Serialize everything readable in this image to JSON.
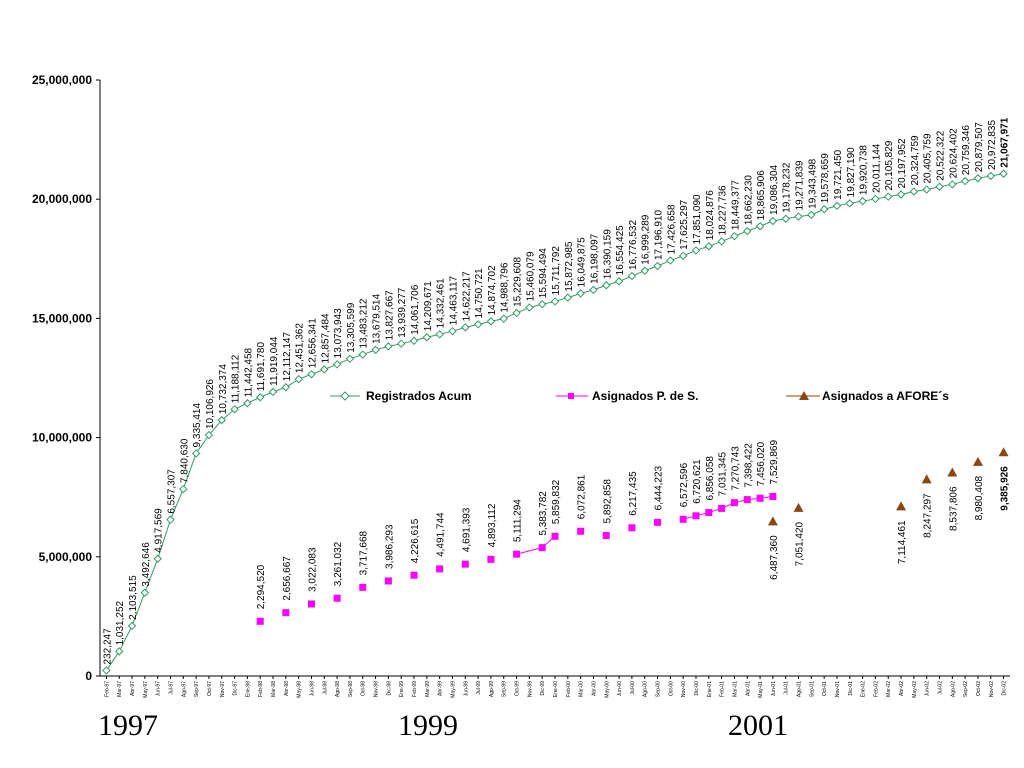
{
  "chart_data": {
    "type": "line",
    "ylim": [
      0,
      25000000
    ],
    "yticks": [
      "0",
      "5,000,000",
      "10,000,000",
      "15,000,000",
      "20,000,000",
      "25,000,000"
    ],
    "x": [
      "Feb-97",
      "Mar-97",
      "Abr-97",
      "May-97",
      "Jun-97",
      "Jul-97",
      "Ago-97",
      "Sep-97",
      "Oct-97",
      "Nov-97",
      "Dic-97",
      "Ene-98",
      "Feb-98",
      "Mar-98",
      "Abr-98",
      "May-98",
      "Jun-98",
      "Jul-98",
      "Ago-98",
      "Sep-98",
      "Oct-98",
      "Nov-98",
      "Dic-98",
      "Ene-99",
      "Feb-99",
      "Mar-99",
      "Abr-99",
      "May-99",
      "Jun-99",
      "Jul-99",
      "Ago-99",
      "Sep-99",
      "Oct-99",
      "Nov-99",
      "Dic-99",
      "Ene-00",
      "Feb-00",
      "Mar-00",
      "Abr-00",
      "May-00",
      "Jun-00",
      "Jul-00",
      "Ago-00",
      "Sep-00",
      "Oct-00",
      "Nov-00",
      "Dic-00",
      "Ene-01",
      "Feb-01",
      "Mar-01",
      "Abr-01",
      "May-01",
      "Jun-01",
      "Jul-01",
      "Ago-01",
      "Sep-01",
      "Oct-01",
      "Nov-01",
      "Dic-01",
      "Ene-02",
      "Feb-02",
      "Mar-02",
      "Abr-02",
      "May-02",
      "Jun-02",
      "Jul-02",
      "Ago-02",
      "Sep-02",
      "Oct-02",
      "Nov-02",
      "Dic-02"
    ],
    "xtick_labels": [
      "Feb-97",
      "Mar-97",
      "Abr-97",
      "May-97",
      "Jun-97",
      "Jul-97",
      "Ago-97",
      "Sep-97",
      "Oct-97",
      "Nov-97",
      "Dic-97",
      "Ene-98",
      "Feb-98",
      "Mar-98",
      "Abr-98",
      "May-98",
      "Jun-98",
      "Jul-98",
      "Ago-98",
      "Sep-98",
      "Oct-98",
      "Nov-98",
      "Dic-98",
      "Ene-99",
      "Feb-99",
      "Mar-99",
      "Abr-99",
      "May-99",
      "Jun-99",
      "Jul-99",
      "Ago-99",
      "Sep-99",
      "Oct-99",
      "Nov-99",
      "Dic-99",
      "Ene-00",
      "Feb-00",
      "Mar-00",
      "Abr-00",
      "May-00",
      "Jun-00",
      "Jul-00",
      "Ago-00",
      "Sep-00",
      "Oct-00",
      "Nov-00",
      "Dic-00",
      "Ene-01",
      "Feb-01",
      "Mar-01",
      "Abr-01",
      "May-01",
      "Jun-01",
      "Jul-01",
      "Ago-01",
      "Sep-01",
      "Oct-01",
      "Nov-01",
      "Dic-01",
      "Ene-02",
      "Feb-02",
      "Mar-02",
      "Abr-02",
      "May-02",
      "Jun-02",
      "Jul-02",
      "Ago-02",
      "Sep-02",
      "Oct-02",
      "Nov-02",
      "Dic-02"
    ],
    "year_labels": [
      "1997",
      "1999",
      "2001"
    ],
    "legend_position": "middle",
    "series": [
      {
        "name": "Registrados Acum",
        "color": "#339966",
        "marker": "diamond",
        "start_index": 0,
        "values": [
          232247,
          1031252,
          2103515,
          3492646,
          4917569,
          6557307,
          7840630,
          9335414,
          10106926,
          10732374,
          11188112,
          11442458,
          11691780,
          11919044,
          12112147,
          12451362,
          12656341,
          12857484,
          13073943,
          13305599,
          13483212,
          13679514,
          13827667,
          13939277,
          14061706,
          14209671,
          14332461,
          14463117,
          14622217,
          14750721,
          14874702,
          14988796,
          15229608,
          15460079,
          15594494,
          15711792,
          15872985,
          16049875,
          16198097,
          16390159,
          16554425,
          16776532,
          16999289,
          17196910,
          17426658,
          17625297,
          17851090,
          18024876,
          18227736,
          18449377,
          18662230,
          18865906,
          19086304,
          19178232,
          19271839,
          19343498,
          19578659,
          19721450,
          19827190,
          19920738,
          20011144,
          20105829,
          20197952,
          20324759,
          20405759,
          20522322,
          20624402,
          20759346,
          20879507,
          20972835,
          21067971
        ],
        "labels": [
          "232,247",
          "1,031,252",
          "2,103,515",
          "3,492,646",
          "4,917,569",
          "6,557,307",
          "7,840,630",
          "9,335,414",
          "10,106,926",
          "10,732,374",
          "11,188,112",
          "11,442,458",
          "11,691,780",
          "11,919,044",
          "12,112,147",
          "12,451,362",
          "12,656,341",
          "12,857,484",
          "13,073,943",
          "13,305,599",
          "13,483,212",
          "13,679,514",
          "13,827,667",
          "13,939,277",
          "14,061,706",
          "14,209,671",
          "14,332,461",
          "14,463,117",
          "14,622,217",
          "14,750,721",
          "14,874,702",
          "14,988,796",
          "15,229,608",
          "15,460,079",
          "15,594,494",
          "15,711,792",
          "15,872,985",
          "16,049,875",
          "16,198,097",
          "16,390,159",
          "16,554,425",
          "16,776,532",
          "16,999,289",
          "17,196,910",
          "17,426,658",
          "17,625,297",
          "17,851,090",
          "18,024,876",
          "18,227,736",
          "18,449,377",
          "18,662,230",
          "18,865,906",
          "19,086,304",
          "19,178,232",
          "19,271,839",
          "19,343,498",
          "19,578,659",
          "19,721,450",
          "19,827,190",
          "19,920,738",
          "20,011,144",
          "20,105,829",
          "20,197,952",
          "20,324,759",
          "20,405,759",
          "20,522,322",
          "20,624,402",
          "20,759,346",
          "20,879,507",
          "20,972,835",
          "21,067,971"
        ]
      },
      {
        "name": "Asignados P. de S.",
        "color": "#ff00ff",
        "marker": "square",
        "points": [
          {
            "x": "Feb-98",
            "value": 2294520,
            "label": "2,294,520"
          },
          {
            "x": "Abr-98",
            "value": 2656667,
            "label": "2,656,667"
          },
          {
            "x": "Jun-98",
            "value": 3022083,
            "label": "3,022,083"
          },
          {
            "x": "Ago-98",
            "value": 3261032,
            "label": "3,261,032"
          },
          {
            "x": "Oct-98",
            "value": 3717668,
            "label": "3,717,668"
          },
          {
            "x": "Dic-98",
            "value": 3986293,
            "label": "3,986,293"
          },
          {
            "x": "Feb-99",
            "value": 4226615,
            "label": "4,226,615"
          },
          {
            "x": "Abr-99",
            "value": 4491744,
            "label": "4,491,744"
          },
          {
            "x": "Jun-99",
            "value": 4691393,
            "label": "4,691,393"
          },
          {
            "x": "Ago-99",
            "value": 4893112,
            "label": "4,893,112"
          },
          {
            "x": "Oct-99",
            "value": 5111294,
            "label": "5,111,294"
          },
          {
            "x": "Dic-99",
            "value": 5383782,
            "label": "5,383,782"
          },
          {
            "x": "Ene-00",
            "value": 5859832,
            "label": "5,859,832"
          },
          {
            "x": "Mar-00",
            "value": 6072861,
            "label": "6,072,861"
          },
          {
            "x": "May-00",
            "value": 5892858,
            "label": "5,892,858"
          },
          {
            "x": "Jul-00",
            "value": 6217435,
            "label": "6,217,435"
          },
          {
            "x": "Sep-00",
            "value": 6444223,
            "label": "6,444,223"
          },
          {
            "x": "Nov-00",
            "value": 6572596,
            "label": "6,572,596"
          },
          {
            "x": "Dic-00",
            "value": 6720621,
            "label": "6,720,621"
          },
          {
            "x": "Ene-01",
            "value": 6856058,
            "label": "6,856,058"
          },
          {
            "x": "Feb-01",
            "value": 7031345,
            "label": "7,031,345"
          },
          {
            "x": "Mar-01",
            "value": 7270743,
            "label": "7,270,743"
          },
          {
            "x": "Abr-01",
            "value": 7398422,
            "label": "7,398,422"
          },
          {
            "x": "May-01",
            "value": 7456020,
            "label": "7,456,020"
          },
          {
            "x": "Jun-01",
            "value": 7529869,
            "label": "7,529,869"
          }
        ]
      },
      {
        "name": "Asignados a AFORE´s",
        "color": "#8b4513",
        "marker": "triangle",
        "points": [
          {
            "x": "Jun-01",
            "value": 6487360,
            "label": "6,487,360"
          },
          {
            "x": "Ago-01",
            "value": 7051420,
            "label": "7,051,420"
          },
          {
            "x": "Abr-02",
            "value": 7114461,
            "label": "7,114,461"
          },
          {
            "x": "Jun-02",
            "value": 8247297,
            "label": "8,247,297"
          },
          {
            "x": "Ago-02",
            "value": 8537806,
            "label": "8,537,806"
          },
          {
            "x": "Oct-02",
            "value": 8980408,
            "label": "8,980,408"
          },
          {
            "x": "Dic-02",
            "value": 9385926,
            "label": "9,385,926"
          }
        ]
      }
    ]
  }
}
